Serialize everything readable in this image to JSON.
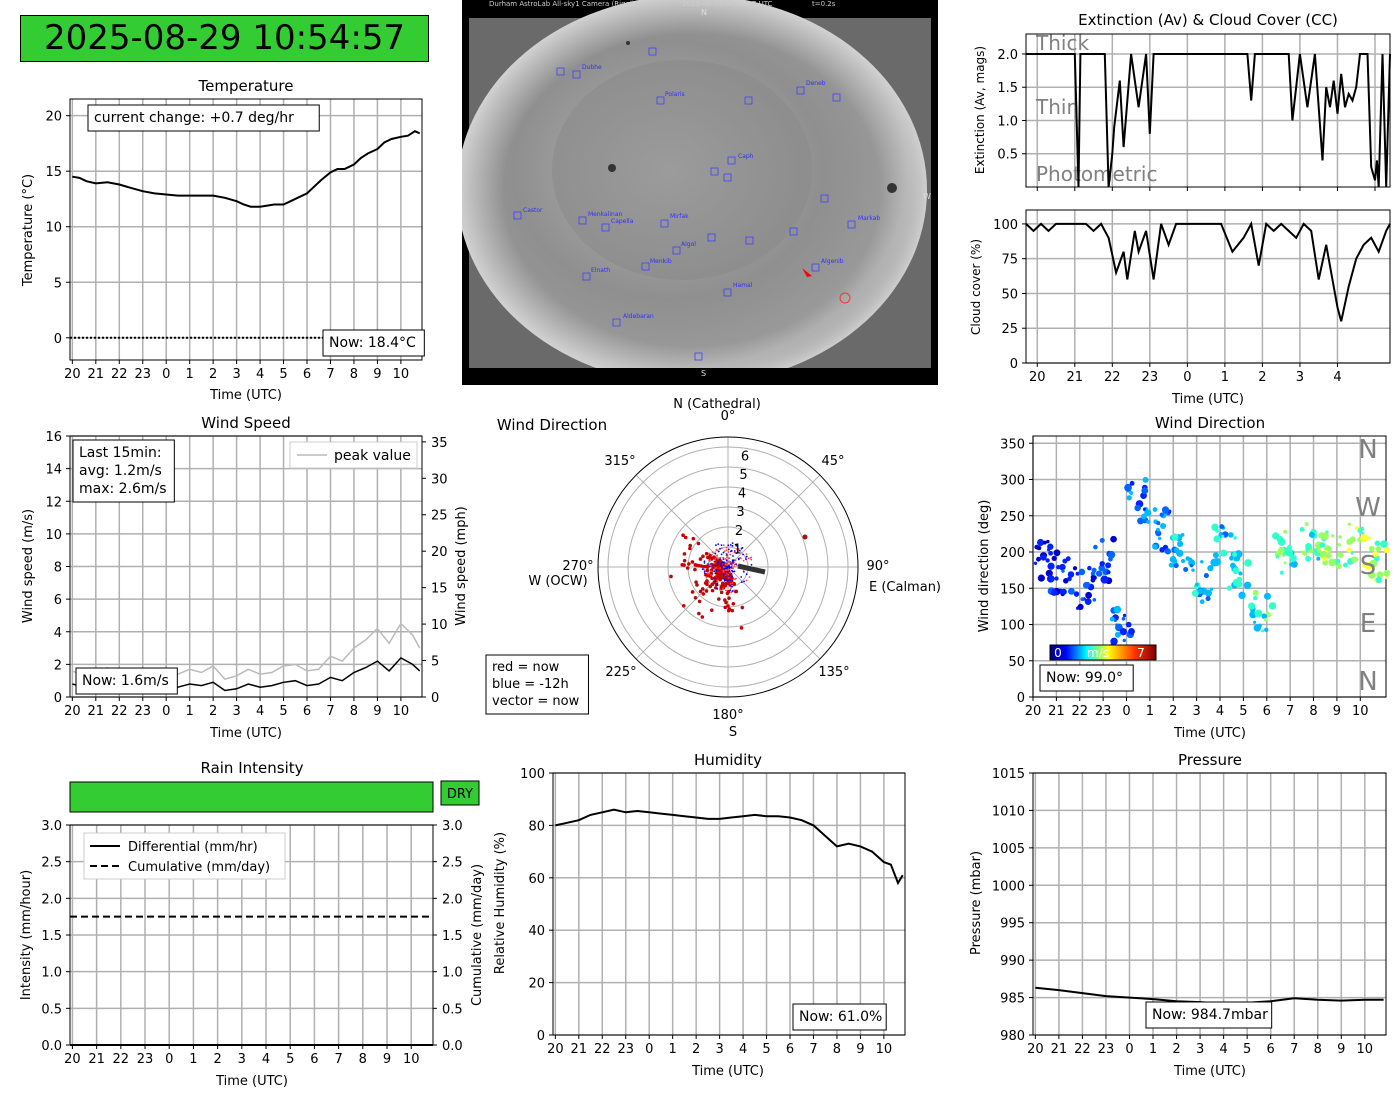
{
  "clock": {
    "datetime": "2025-08-29 10:54:57",
    "color": "#33cc33"
  },
  "sky_camera": {
    "header_left": "Durham AstroLab All-sky1 Camera (Rigel)",
    "header_mid": "2025-08-29 04:32:27 UTC",
    "header_right": "t=0.2s",
    "dir_n": "N",
    "dir_s": "S",
    "dir_w": "W",
    "stars": [
      "Dubhe",
      "Polaris",
      "Deneb",
      "Caph",
      "Castor",
      "Menkalinan",
      "Capella",
      "Mirfak",
      "Algol",
      "Markab",
      "Menkib",
      "Elnath",
      "Algenib",
      "Hamal",
      "Aldebaran"
    ]
  },
  "temperature": {
    "title": "Temperature",
    "ylabel": "Temperature (°C)",
    "xlabel": "Time (UTC)",
    "box": "current change: +0.7 deg/hr",
    "now": "Now: 18.4°C",
    "chart_data": {
      "type": "line",
      "x_ticks": [
        "20",
        "21",
        "22",
        "23",
        "0",
        "1",
        "2",
        "3",
        "4",
        "5",
        "6",
        "7",
        "8",
        "9",
        "10"
      ],
      "ylim": [
        -2,
        21.5
      ],
      "y_ticks": [
        0,
        5,
        10,
        15,
        20
      ],
      "x": [
        0,
        0.3,
        0.6,
        1,
        1.5,
        2,
        2.5,
        3,
        3.5,
        4,
        4.5,
        5,
        5.5,
        6,
        6.5,
        7,
        7.3,
        7.6,
        8,
        8.3,
        8.6,
        9,
        9.3,
        9.6,
        10,
        10.3,
        10.6,
        11,
        11.3,
        11.6,
        12,
        12.3,
        12.6,
        13,
        13.3,
        13.6,
        14,
        14.3,
        14.6,
        14.8
      ],
      "y": [
        14.5,
        14.4,
        14.1,
        13.9,
        14.0,
        13.8,
        13.5,
        13.2,
        13.0,
        12.9,
        12.8,
        12.8,
        12.8,
        12.8,
        12.6,
        12.3,
        12.0,
        11.8,
        11.8,
        11.9,
        12.0,
        12.0,
        12.3,
        12.6,
        13.0,
        13.6,
        14.2,
        14.9,
        15.2,
        15.2,
        15.6,
        16.2,
        16.6,
        17.0,
        17.6,
        17.9,
        18.1,
        18.2,
        18.6,
        18.4
      ],
      "zero_line": 0
    }
  },
  "wind_speed": {
    "title": "Wind Speed",
    "ylabel": "Wind speed (m/s)",
    "ylabel2": "Wind speed (mph)",
    "xlabel": "Time (UTC)",
    "legend": "peak value",
    "box_l1": "Last 15min:",
    "box_l2": "avg: 1.2m/s",
    "box_l3": "max: 2.6m/s",
    "now": "Now: 1.6m/s",
    "chart_data": {
      "type": "line",
      "x_ticks": [
        "20",
        "21",
        "22",
        "23",
        "0",
        "1",
        "2",
        "3",
        "4",
        "5",
        "6",
        "7",
        "8",
        "9",
        "10"
      ],
      "ylim": [
        0,
        16
      ],
      "y_ticks": [
        0,
        2,
        4,
        6,
        8,
        10,
        12,
        14,
        16
      ],
      "y2_ticks": [
        0,
        5,
        10,
        15,
        20,
        25,
        30,
        35
      ],
      "x": [
        0,
        0.5,
        1,
        1.5,
        2,
        2.5,
        3,
        3.5,
        4,
        4.5,
        5,
        5.5,
        6,
        6.5,
        7,
        7.5,
        8,
        8.5,
        9,
        9.5,
        10,
        10.5,
        11,
        11.5,
        12,
        12.5,
        13,
        13.5,
        14,
        14.5,
        14.8
      ],
      "avg": [
        0.8,
        0.6,
        0.7,
        0.9,
        0.5,
        0.8,
        0.6,
        0.7,
        0.5,
        0.6,
        0.8,
        0.7,
        0.9,
        0.4,
        0.5,
        0.8,
        0.6,
        0.7,
        0.9,
        1.0,
        0.7,
        0.8,
        1.2,
        1.0,
        1.5,
        1.8,
        2.2,
        1.6,
        2.4,
        2.0,
        1.6
      ],
      "peak": [
        1.6,
        1.3,
        1.5,
        1.8,
        1.2,
        1.7,
        1.4,
        1.6,
        1.3,
        1.4,
        1.7,
        1.5,
        1.9,
        1.1,
        1.3,
        1.7,
        1.4,
        1.5,
        1.9,
        2.0,
        1.6,
        1.7,
        2.5,
        2.2,
        3.0,
        3.5,
        4.2,
        3.3,
        4.5,
        3.8,
        3.0
      ]
    }
  },
  "wind_rose": {
    "title": "Wind Direction",
    "label_n": "N (Cathedral)",
    "label_e": "E (Calman)",
    "label_s": "S",
    "label_w": "W (OCW)",
    "angles": [
      "0°",
      "45°",
      "90°",
      "135°",
      "180°",
      "225°",
      "270°",
      "315°"
    ],
    "radii": [
      "1",
      "2",
      "3",
      "4",
      "5",
      "6"
    ],
    "legend_l1": "red = now",
    "legend_l2": "blue = -12h",
    "legend_l3": "vector = now",
    "colors": {
      "now": "#cc0000",
      "old": "#0000ff",
      "vector": "#333333"
    }
  },
  "extinction": {
    "title": "Extinction (Av) & Cloud Cover (CC)",
    "ylabel": "Extinction (Av, mags)",
    "band_thick": "Thick",
    "band_thin": "Thin",
    "band_photometric": "Photometric",
    "chart_data": {
      "type": "line",
      "ylim": [
        0,
        2.3
      ],
      "y_ticks": [
        0.5,
        1.0,
        1.5,
        2.0
      ],
      "x": [
        0,
        1.3,
        1.4,
        1.45,
        1.6,
        2.1,
        2.2,
        2.3,
        2.35,
        2.5,
        2.6,
        2.8,
        3.0,
        3.2,
        3.3,
        3.4,
        3.6,
        3.8,
        4.0,
        4.6,
        5.0,
        5.5,
        5.9,
        6.0,
        6.1,
        6.5,
        7.0,
        7.1,
        7.3,
        7.5,
        7.7,
        7.9,
        8.0,
        8.1,
        8.2,
        8.3,
        8.4,
        8.5,
        8.6,
        8.7,
        8.8,
        8.9,
        9.0,
        9.1,
        9.2,
        9.3,
        9.35,
        9.4,
        9.5,
        9.6,
        9.7
      ],
      "y": [
        2.0,
        2.0,
        0.0,
        2.0,
        2.0,
        2.0,
        0.0,
        0.5,
        0.9,
        1.6,
        0.6,
        2.0,
        1.2,
        2.0,
        0.8,
        2.0,
        2.0,
        2.0,
        2.0,
        2.0,
        2.0,
        2.0,
        2.0,
        1.3,
        2.0,
        2.0,
        2.0,
        1.0,
        2.0,
        1.2,
        2.0,
        0.4,
        1.5,
        1.2,
        1.6,
        1.1,
        1.7,
        1.2,
        1.4,
        1.3,
        1.5,
        2.0,
        2.0,
        2.0,
        0.3,
        0.1,
        0.4,
        0.0,
        2.0,
        0.0,
        2.0
      ]
    }
  },
  "cloud_cover": {
    "ylabel": "Cloud cover (%)",
    "xlabel": "Time (UTC)",
    "chart_data": {
      "type": "line",
      "x_ticks": [
        "20",
        "21",
        "22",
        "23",
        "0",
        "1",
        "2",
        "3",
        "4"
      ],
      "ylim": [
        0,
        110
      ],
      "y_ticks": [
        0,
        25,
        50,
        75,
        100
      ],
      "x": [
        0,
        0.2,
        0.4,
        0.6,
        0.8,
        1.0,
        1.2,
        1.4,
        1.6,
        1.8,
        2.0,
        2.2,
        2.4,
        2.6,
        2.7,
        2.9,
        3.0,
        3.2,
        3.4,
        3.6,
        3.8,
        4.0,
        4.3,
        4.6,
        4.9,
        5.2,
        5.5,
        5.8,
        6.0,
        6.2,
        6.4,
        6.6,
        6.8,
        7.0,
        7.2,
        7.4,
        7.6,
        7.8,
        8.0,
        8.2,
        8.3,
        8.4,
        8.6,
        8.8,
        9.0,
        9.2,
        9.4,
        9.6,
        9.7
      ],
      "y": [
        100,
        95,
        100,
        95,
        100,
        100,
        100,
        100,
        100,
        95,
        100,
        90,
        65,
        80,
        60,
        95,
        80,
        95,
        60,
        100,
        85,
        100,
        100,
        100,
        100,
        100,
        80,
        90,
        100,
        70,
        100,
        95,
        100,
        95,
        90,
        100,
        95,
        60,
        85,
        55,
        40,
        30,
        55,
        75,
        85,
        90,
        80,
        95,
        100
      ]
    }
  },
  "wind_dir_ts": {
    "title": "Wind Direction",
    "ylabel": "Wind direction (deg)",
    "xlabel": "Time (UTC)",
    "compass": [
      "N",
      "W",
      "S",
      "E",
      "N"
    ],
    "cbar_min": "0",
    "cbar_label": "m/s",
    "cbar_max": "7",
    "now": "Now: 99.0°",
    "chart_data": {
      "type": "scatter",
      "x_ticks": [
        "20",
        "21",
        "22",
        "23",
        "0",
        "1",
        "2",
        "3",
        "4",
        "5",
        "6",
        "7",
        "8",
        "9",
        "10"
      ],
      "ylim": [
        0,
        360
      ],
      "y_ticks": [
        0,
        50,
        100,
        150,
        200,
        250,
        300,
        350
      ]
    }
  },
  "rain": {
    "title": "Rain Intensity",
    "status": "DRY",
    "ylabel": "Intensity (mm/hour)",
    "ylabel2": "Cumulative (mm/day)",
    "xlabel": "Time (UTC)",
    "legend_diff": "Differential (mm/hr)",
    "legend_cum": "Cumulative (mm/day)",
    "chart_data": {
      "type": "line",
      "x_ticks": [
        "20",
        "21",
        "22",
        "23",
        "0",
        "1",
        "2",
        "3",
        "4",
        "5",
        "6",
        "7",
        "8",
        "9",
        "10"
      ],
      "ylim": [
        0,
        3.0
      ],
      "y_ticks": [
        "0.0",
        "0.5",
        "1.0",
        "1.5",
        "2.0",
        "2.5",
        "3.0"
      ],
      "differential": 0.0,
      "cumulative": 1.75
    }
  },
  "humidity": {
    "title": "Humidity",
    "ylabel": "Relative Humidity (%)",
    "xlabel": "Time (UTC)",
    "now": "Now: 61.0%",
    "chart_data": {
      "type": "line",
      "x_ticks": [
        "20",
        "21",
        "22",
        "23",
        "0",
        "1",
        "2",
        "3",
        "4",
        "5",
        "6",
        "7",
        "8",
        "9",
        "10"
      ],
      "ylim": [
        0,
        100
      ],
      "y_ticks": [
        0,
        20,
        40,
        60,
        80,
        100
      ],
      "x": [
        0,
        0.5,
        1,
        1.5,
        2,
        2.5,
        3,
        3.5,
        4,
        4.5,
        5,
        5.5,
        6,
        6.5,
        7,
        7.5,
        8,
        8.5,
        9,
        9.5,
        10,
        10.5,
        11,
        11.5,
        12,
        12.5,
        13,
        13.5,
        14,
        14.3,
        14.6,
        14.8
      ],
      "y": [
        80,
        81,
        82,
        84,
        85,
        86,
        85,
        85.5,
        85,
        84.5,
        84,
        83.5,
        83,
        82.5,
        82.5,
        83,
        83.5,
        84,
        83.5,
        83.5,
        83,
        82,
        80,
        76,
        72,
        73,
        72,
        70,
        66,
        65,
        58,
        61
      ]
    }
  },
  "pressure": {
    "title": "Pressure",
    "ylabel": "Pressure (mbar)",
    "xlabel": "Time (UTC)",
    "now": "Now: 984.7mbar",
    "chart_data": {
      "type": "line",
      "x_ticks": [
        "20",
        "21",
        "22",
        "23",
        "0",
        "1",
        "2",
        "3",
        "4",
        "5",
        "6",
        "7",
        "8",
        "9",
        "10"
      ],
      "ylim": [
        980,
        1015
      ],
      "y_ticks": [
        980,
        985,
        990,
        995,
        1000,
        1005,
        1010,
        1015
      ],
      "x": [
        0,
        1,
        2,
        3,
        4,
        5,
        6,
        7,
        8,
        9,
        10,
        11,
        12,
        13,
        14,
        14.8
      ],
      "y": [
        986.3,
        986.0,
        985.6,
        985.2,
        985.0,
        984.8,
        984.5,
        984.4,
        984.2,
        984.3,
        984.5,
        984.9,
        984.7,
        984.6,
        984.7,
        984.7
      ]
    }
  }
}
